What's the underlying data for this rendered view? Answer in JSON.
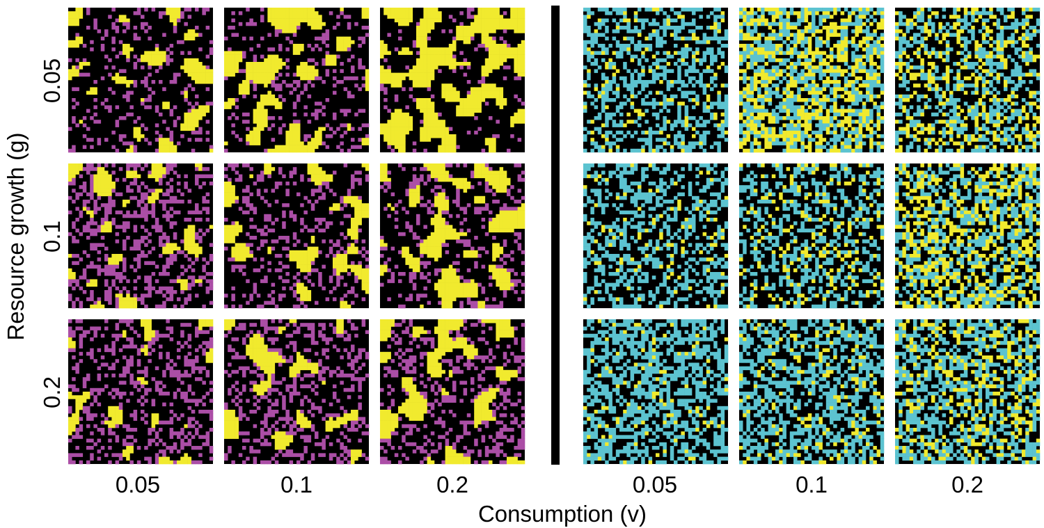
{
  "chart_data": {
    "type": "heatmap",
    "title": "",
    "xlabel": "Consumption (v)",
    "ylabel": "Resource growth (g)",
    "grid": false,
    "legend": "none",
    "panel_groups": [
      {
        "name": "",
        "columns": [
          "0.05",
          "0.1",
          "0.2"
        ],
        "rows": [
          "0.05",
          "0.1",
          "0.2"
        ],
        "cell_colors": [
          "#000000",
          "#ab4ea6",
          "#f1ea2e"
        ],
        "panels": [
          {
            "row": 0,
            "col": 0,
            "p_second": 0.15,
            "p_third": 0.14
          },
          {
            "row": 0,
            "col": 1,
            "p_second": 0.14,
            "p_third": 0.24
          },
          {
            "row": 0,
            "col": 2,
            "p_second": 0.06,
            "p_third": 0.42
          },
          {
            "row": 1,
            "col": 0,
            "p_second": 0.3,
            "p_third": 0.12
          },
          {
            "row": 1,
            "col": 1,
            "p_second": 0.18,
            "p_third": 0.16
          },
          {
            "row": 1,
            "col": 2,
            "p_second": 0.16,
            "p_third": 0.26
          },
          {
            "row": 2,
            "col": 0,
            "p_second": 0.3,
            "p_third": 0.08
          },
          {
            "row": 2,
            "col": 1,
            "p_second": 0.26,
            "p_third": 0.14
          },
          {
            "row": 2,
            "col": 2,
            "p_second": 0.24,
            "p_third": 0.22
          }
        ]
      },
      {
        "name": "",
        "columns": [
          "0.05",
          "0.1",
          "0.2"
        ],
        "rows": [
          "0.05",
          "0.1",
          "0.2"
        ],
        "cell_colors": [
          "#000000",
          "#5cc3d0",
          "#f1ea2e"
        ],
        "panels": [
          {
            "row": 0,
            "col": 0,
            "p_second": 0.36,
            "p_third": 0.08
          },
          {
            "row": 0,
            "col": 1,
            "p_second": 0.36,
            "p_third": 0.36
          },
          {
            "row": 0,
            "col": 2,
            "p_second": 0.3,
            "p_third": 0.22
          },
          {
            "row": 1,
            "col": 0,
            "p_second": 0.36,
            "p_third": 0.06
          },
          {
            "row": 1,
            "col": 1,
            "p_second": 0.32,
            "p_third": 0.12
          },
          {
            "row": 1,
            "col": 2,
            "p_second": 0.32,
            "p_third": 0.3
          },
          {
            "row": 2,
            "col": 0,
            "p_second": 0.5,
            "p_third": 0.06
          },
          {
            "row": 2,
            "col": 1,
            "p_second": 0.44,
            "p_third": 0.1
          },
          {
            "row": 2,
            "col": 2,
            "p_second": 0.4,
            "p_third": 0.2
          }
        ]
      }
    ]
  },
  "colors": {
    "divider": "#000000",
    "background": "#ffffff"
  }
}
